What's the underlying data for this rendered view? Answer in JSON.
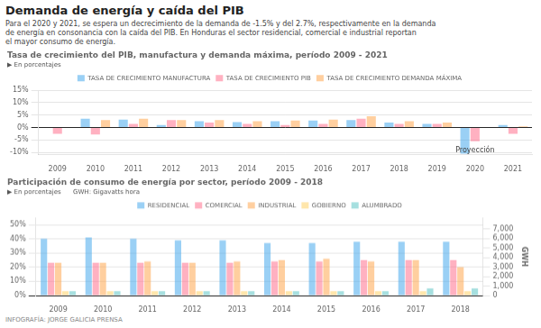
{
  "title": "Demanda de energía y caída del PIB",
  "subtitle": "Para el 2020 y 2021, se espera un decrecimiento de la demanda de -1.5% y del 2.7%, respectivamente en la demanda\nde energía en consonancia con la caída del PIB. En Honduras el sector residencial, comercial e industrial reportan\nel mayor consumo de energía.",
  "annotations": [
    {
      "text": "INFOGRAFÍA: JORGE GALICIA PRENSA"
    }
  ],
  "chart_data": [
    {
      "type": "bar",
      "title": "Tasa de crecimiento del PIB, manufactura y demanda máxima, período 2009 - 2021",
      "categories": [
        "2009",
        "2010",
        "2011",
        "2012",
        "2013",
        "2014",
        "2015",
        "2016",
        "2017",
        "2018",
        "2019",
        "2020",
        "2021"
      ],
      "series": [
        {
          "name": "TASA DE CRECIMIENTO MANUFACTURA",
          "values": [
            0.0,
            3.5,
            3.2,
            1.0,
            2.5,
            2.2,
            2.5,
            2.8,
            3.0,
            2.0,
            1.5,
            -10.5,
            1.0
          ]
        },
        {
          "name": "TASA DE CRECIMIENTO PIB",
          "values": [
            -2.5,
            -2.8,
            1.5,
            3.0,
            2.0,
            1.5,
            1.0,
            1.5,
            3.5,
            1.5,
            1.5,
            -5.5,
            -2.5
          ]
        },
        {
          "name": "TASA DE CRECIMIENTO DEMANDA MÁXIMA",
          "values": [
            0.0,
            3.0,
            3.5,
            3.0,
            3.0,
            2.5,
            2.8,
            3.2,
            4.5,
            2.5,
            2.0,
            0.0,
            0.5
          ]
        }
      ],
      "ylim": [
        -11,
        15
      ],
      "yticks": [
        {
          "value": -10,
          "label": "-10%"
        },
        {
          "value": -5,
          "label": "-5%"
        },
        {
          "value": 0,
          "label": "0%"
        },
        {
          "value": 5,
          "label": "5%"
        },
        {
          "value": 10,
          "label": "10%"
        },
        {
          "value": 15,
          "label": "15%"
        }
      ],
      "grid": "y",
      "legend": "top",
      "annotations": [
        {
          "text": "▶ En porcentajes"
        },
        {
          "text": "Proyección",
          "x": "2020",
          "y": -10.8
        }
      ]
    },
    {
      "type": "bar",
      "title": "Participación de consumo de energía por sector, período 2009 - 2018",
      "categories": [
        "2009",
        "2010",
        "2011",
        "2012",
        "2013",
        "2014",
        "2015",
        "2016",
        "2017",
        "2018"
      ],
      "series": [
        {
          "name": "RESIDENCIAL",
          "values": [
            40,
            41,
            40,
            39,
            39,
            37,
            37,
            38,
            38,
            38
          ]
        },
        {
          "name": "COMERCIAL",
          "values": [
            23,
            23,
            23,
            23,
            23,
            24,
            24,
            25,
            25,
            25
          ]
        },
        {
          "name": "INDUSTRIAL",
          "values": [
            23,
            23,
            24,
            23,
            24,
            25,
            26,
            24,
            25,
            20
          ]
        },
        {
          "name": "GOBIERNO",
          "values": [
            3,
            3,
            3,
            3,
            3,
            3,
            3,
            3,
            3,
            3
          ]
        },
        {
          "name": "ALUMBRADO",
          "values": [
            3,
            3,
            3,
            3,
            3,
            3,
            3,
            3,
            5,
            5
          ]
        }
      ],
      "ylim": [
        0,
        55
      ],
      "yticks": [
        {
          "value": 0,
          "label": "0%"
        },
        {
          "value": 10,
          "label": "10%"
        },
        {
          "value": 20,
          "label": "20%"
        },
        {
          "value": 30,
          "label": "30%"
        },
        {
          "value": 40,
          "label": "40%"
        },
        {
          "value": 50,
          "label": "50%"
        }
      ],
      "y2label": "GWH",
      "y2lim": [
        0,
        8200
      ],
      "y2ticks": [
        0,
        {
          "value": 1000,
          "label": "1,000"
        },
        {
          "value": 2000,
          "label": "2,000"
        },
        {
          "value": 3000,
          "label": "3,000"
        },
        {
          "value": 4000,
          "label": "4,000"
        },
        {
          "value": 5000,
          "label": "5,000"
        },
        {
          "value": 6000,
          "label": "6,000"
        },
        {
          "value": 7000,
          "label": "7,000"
        }
      ],
      "grid": "y",
      "legend": "top",
      "annotations": [
        {
          "text": "▶ En porcentajes"
        },
        {
          "text": "GWH: Gigavatts hora"
        }
      ]
    }
  ]
}
